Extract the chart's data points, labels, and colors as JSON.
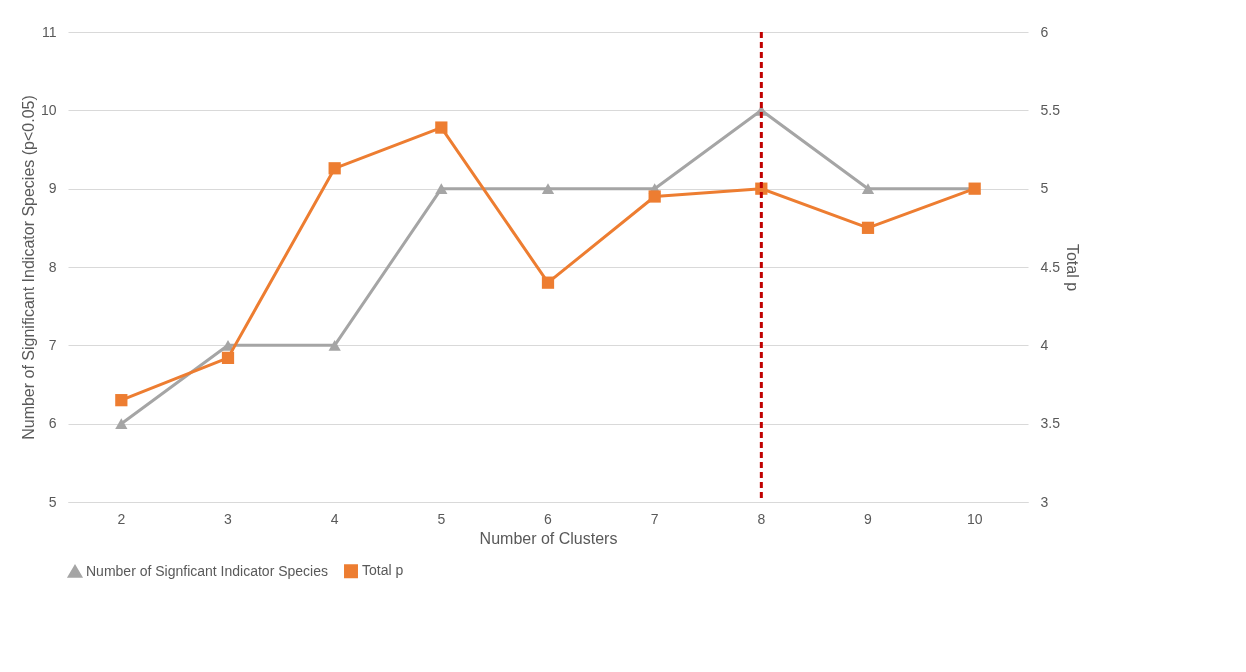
{
  "chart_data": {
    "type": "line",
    "xlabel": "Number of Clusters",
    "ylabel": "Number of Significant Indicator Species (p<0.05)",
    "y2label": "Total p",
    "categories": [
      "2",
      "3",
      "4",
      "5",
      "6",
      "7",
      "8",
      "9",
      "10"
    ],
    "series": [
      {
        "name": "Number of Signficant Indicator Species",
        "color": "#a5a5a5",
        "marker": "triangle",
        "values": [
          6,
          7,
          7,
          9,
          9,
          9,
          10,
          9,
          9
        ]
      },
      {
        "name": "Total p",
        "color": "#ed7d31",
        "marker": "square",
        "axis": "y2",
        "values": [
          3.65,
          3.92,
          5.13,
          5.39,
          4.4,
          4.95,
          5.0,
          4.75,
          5.0
        ]
      }
    ],
    "ylim": [
      5,
      11
    ],
    "yticks": [
      5,
      6,
      7,
      8,
      9,
      10,
      11
    ],
    "y2lim": [
      3,
      6
    ],
    "y2ticks": [
      3,
      3.5,
      4,
      4.5,
      5,
      5.5,
      6
    ],
    "ref_lines": [
      {
        "axis": "x",
        "value": "8",
        "color": "#c00000",
        "line_style": "dashed"
      }
    ],
    "grid": "y",
    "legend": "bottom",
    "line_style": "solid"
  }
}
